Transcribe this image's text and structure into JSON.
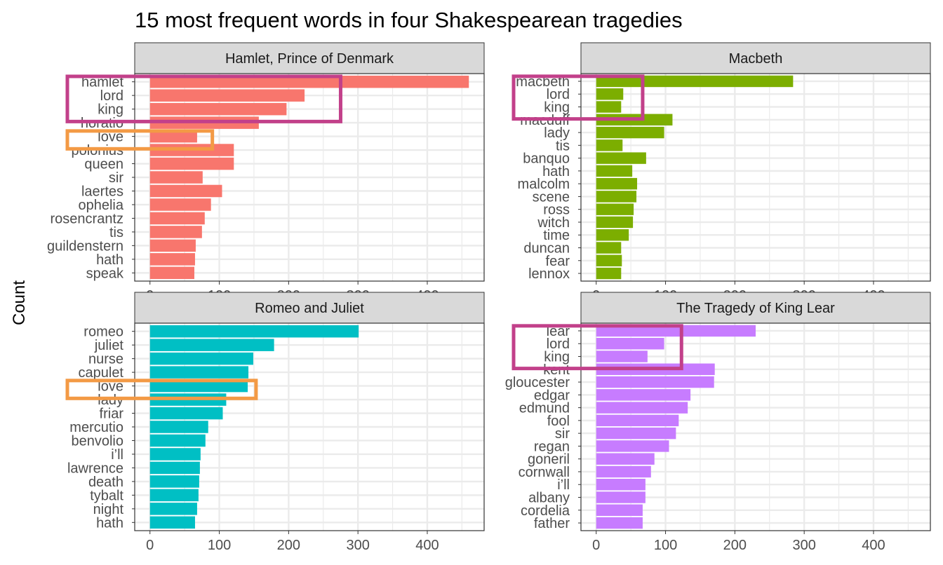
{
  "title": "15 most frequent words in four Shakespearean tragedies",
  "ylabel": "Count",
  "colors": {
    "strip_bg": "#d9d9d9",
    "grid": "#ebebeb",
    "panel_border": "#333333",
    "highlight_magenta": "#c2408a",
    "highlight_orange": "#f39a45"
  },
  "chart_data": [
    {
      "type": "bar",
      "orientation": "horizontal",
      "panel": "Hamlet, Prince of Denmark",
      "color": "#f8766d",
      "categories": [
        "hamlet",
        "lord",
        "king",
        "horatio",
        "love",
        "polonius",
        "queen",
        "sir",
        "laertes",
        "ophelia",
        "rosencrantz",
        "tis",
        "guildenstern",
        "hath",
        "speak"
      ],
      "values": [
        460,
        223,
        197,
        157,
        68,
        121,
        121,
        76,
        104,
        88,
        79,
        75,
        66,
        65,
        64
      ],
      "xlim": [
        -22,
        482
      ],
      "xticks": [
        0,
        100,
        200,
        300,
        400
      ],
      "highlights": [
        {
          "words": [
            "hamlet",
            "lord",
            "king"
          ],
          "color": "magenta",
          "xmax": 275
        },
        {
          "words": [
            "love"
          ],
          "color": "orange",
          "xmax": 90
        }
      ]
    },
    {
      "type": "bar",
      "orientation": "horizontal",
      "panel": "Macbeth",
      "color": "#7cae00",
      "categories": [
        "macbeth",
        "lord",
        "king",
        "macduff",
        "lady",
        "tis",
        "banquo",
        "hath",
        "malcolm",
        "scene",
        "ross",
        "witch",
        "time",
        "duncan",
        "fear",
        "lennox"
      ],
      "values": [
        284,
        39,
        36,
        110,
        98,
        38,
        72,
        52,
        59,
        58,
        54,
        53,
        47,
        36,
        37,
        36
      ],
      "xlim": [
        -22,
        482
      ],
      "xticks": [
        0,
        100,
        200,
        300,
        400
      ],
      "highlights": [
        {
          "words": [
            "macbeth",
            "lord",
            "king"
          ],
          "color": "magenta",
          "xmax": 67
        }
      ]
    },
    {
      "type": "bar",
      "orientation": "horizontal",
      "panel": "Romeo and Juliet",
      "color": "#00bfc4",
      "categories": [
        "romeo",
        "juliet",
        "nurse",
        "capulet",
        "love",
        "lady",
        "friar",
        "mercutio",
        "benvolio",
        "i’ll",
        "lawrence",
        "death",
        "tybalt",
        "night",
        "hath"
      ],
      "values": [
        301,
        179,
        149,
        142,
        141,
        110,
        105,
        84,
        80,
        73,
        72,
        71,
        70,
        68,
        65
      ],
      "xlim": [
        -22,
        482
      ],
      "xticks": [
        0,
        100,
        200,
        300,
        400
      ],
      "highlights": [
        {
          "words": [
            "love"
          ],
          "color": "orange",
          "xmax": 153
        }
      ]
    },
    {
      "type": "bar",
      "orientation": "horizontal",
      "panel": "The Tragedy of King Lear",
      "color": "#c77cff",
      "categories": [
        "lear",
        "lord",
        "king",
        "kent",
        "gloucester",
        "edgar",
        "edmund",
        "fool",
        "sir",
        "regan",
        "goneril",
        "cornwall",
        "i’ll",
        "albany",
        "cordelia",
        "father"
      ],
      "values": [
        230,
        98,
        74,
        171,
        170,
        136,
        132,
        119,
        115,
        105,
        84,
        79,
        71,
        71,
        67,
        67
      ],
      "xlim": [
        -22,
        482
      ],
      "xticks": [
        0,
        100,
        200,
        300,
        400
      ],
      "highlights": [
        {
          "words": [
            "lear",
            "lord",
            "king"
          ],
          "color": "magenta",
          "xmax": 123
        }
      ]
    }
  ]
}
